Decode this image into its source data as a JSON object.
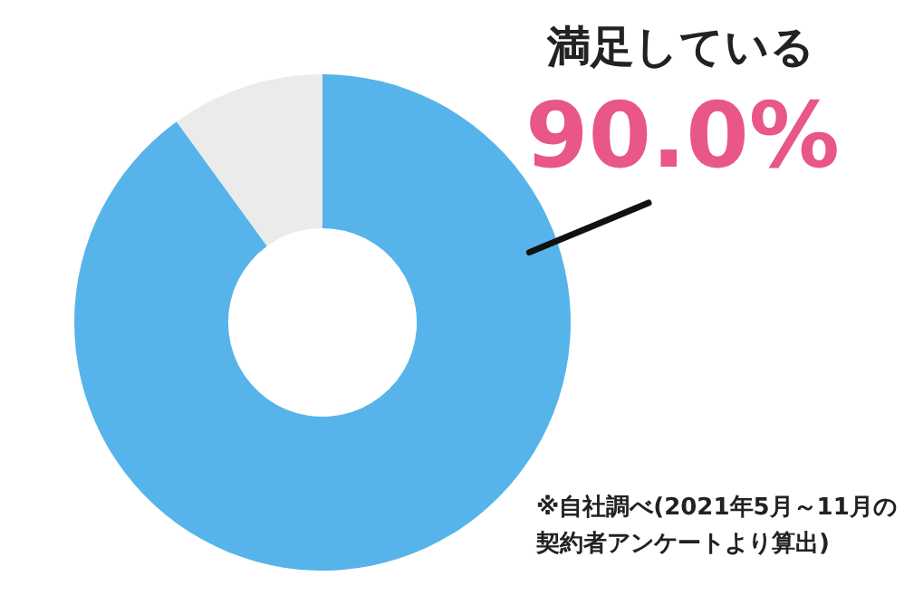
{
  "chart_data": {
    "type": "donut",
    "categories": [
      "満足している",
      null
    ],
    "values": [
      90,
      10
    ],
    "colors": [
      "#56b4ea",
      "#ebebeb"
    ],
    "value_labels": [
      "90.0%",
      null
    ],
    "annotations": [
      "※自社調べ(2021年5月～11月の契約者アンケートより算出)"
    ]
  }
}
